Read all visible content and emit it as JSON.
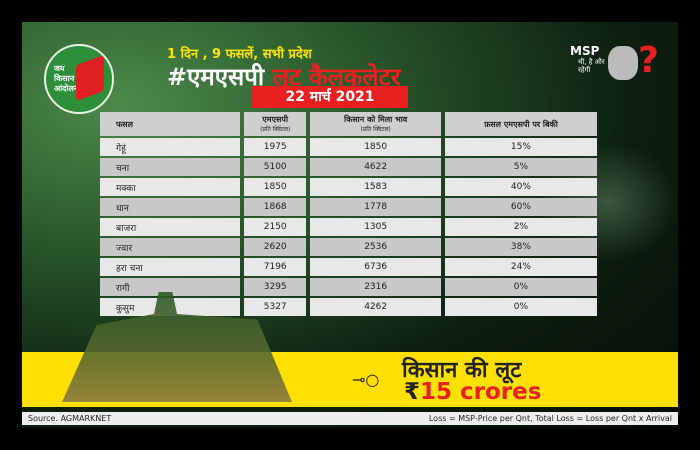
{
  "logo": {
    "lines": [
      "जय",
      "किसान",
      "आंदोलन"
    ]
  },
  "header": {
    "subtitle": "1 दिन , 9 फसलें, सभी प्रदेश",
    "title_white": "#एमएसपी",
    "title_red": "लूट कैलकुलेटर",
    "date": "22 मार्च 2021"
  },
  "msp_badge": {
    "label": "MSP",
    "tagline": "थी, है और रहेगी",
    "question": "?"
  },
  "table": {
    "headers": [
      {
        "main": "फसल",
        "sub": ""
      },
      {
        "main": "एमएसपी",
        "sub": "(प्रति क्विंटल)"
      },
      {
        "main": "किसान को मिला भाव",
        "sub": "(प्रति क्विंटल)"
      },
      {
        "main": "फ़सल एमएसपी पर बिकी",
        "sub": ""
      }
    ],
    "rows": [
      [
        "गेहूं",
        "1975",
        "1850",
        "15%"
      ],
      [
        "चना",
        "5100",
        "4622",
        "5%"
      ],
      [
        "मक्का",
        "1850",
        "1583",
        "40%"
      ],
      [
        "धान",
        "1868",
        "1778",
        "60%"
      ],
      [
        "बाजरा",
        "2150",
        "1305",
        "2%"
      ],
      [
        "ज्वार",
        "2620",
        "2536",
        "38%"
      ],
      [
        "हरा चना",
        "7196",
        "6736",
        "24%"
      ],
      [
        "रागी",
        "3295",
        "2316",
        "0%"
      ],
      [
        "कुसुम",
        "5327",
        "4262",
        "0%"
      ]
    ]
  },
  "banner": {
    "line1": "किसान की लूट",
    "currency": "₹",
    "line2": "15 crores"
  },
  "footer": {
    "source": "Source. AGMARKNET",
    "formula": "Loss = MSP-Price per Qnt, Total Loss = Loss per Qnt x Arrival"
  },
  "colors": {
    "accent_red": "#e82020",
    "banner_yellow": "#ffe000",
    "logo_green": "#2d8f3a"
  }
}
